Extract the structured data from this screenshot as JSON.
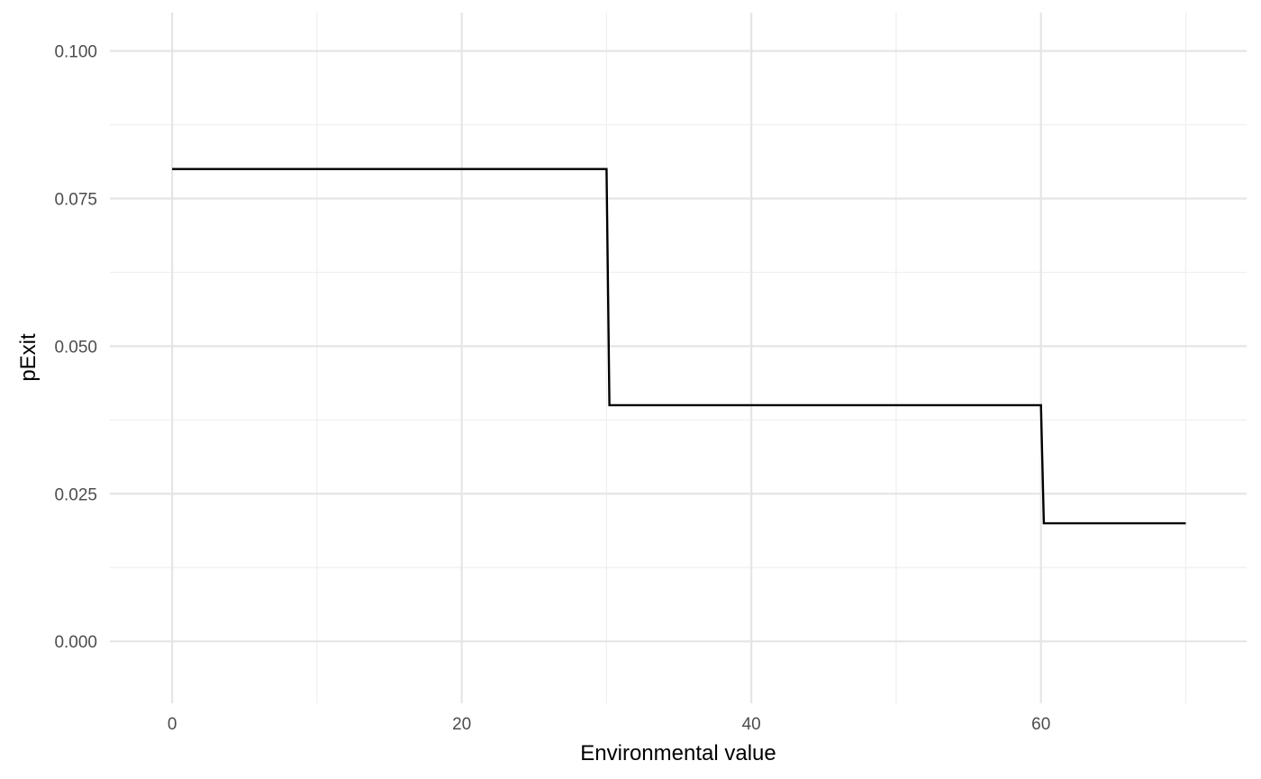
{
  "chart_data": {
    "type": "line",
    "title": "",
    "xlabel": "Environmental value",
    "ylabel": "pExit",
    "xlim": [
      -4.3,
      74.2
    ],
    "ylim": [
      -0.0105,
      0.1065
    ],
    "x_ticks": [
      0,
      20,
      40,
      60
    ],
    "x_tick_labels": [
      "0",
      "20",
      "40",
      "60"
    ],
    "x_minor_ticks": [
      10,
      30,
      50,
      70
    ],
    "y_ticks": [
      0.0,
      0.025,
      0.05,
      0.075,
      0.1
    ],
    "y_tick_labels": [
      "0.000",
      "0.025",
      "0.050",
      "0.075",
      "0.100"
    ],
    "y_minor_ticks": [
      0.0125,
      0.0375,
      0.0625,
      0.0875
    ],
    "grid": true,
    "legend": "none",
    "series": [
      {
        "color": "#000000",
        "x": [
          0,
          30,
          30.2,
          60,
          60.2,
          70
        ],
        "y": [
          0.08,
          0.08,
          0.04,
          0.04,
          0.02,
          0.02
        ]
      }
    ]
  }
}
